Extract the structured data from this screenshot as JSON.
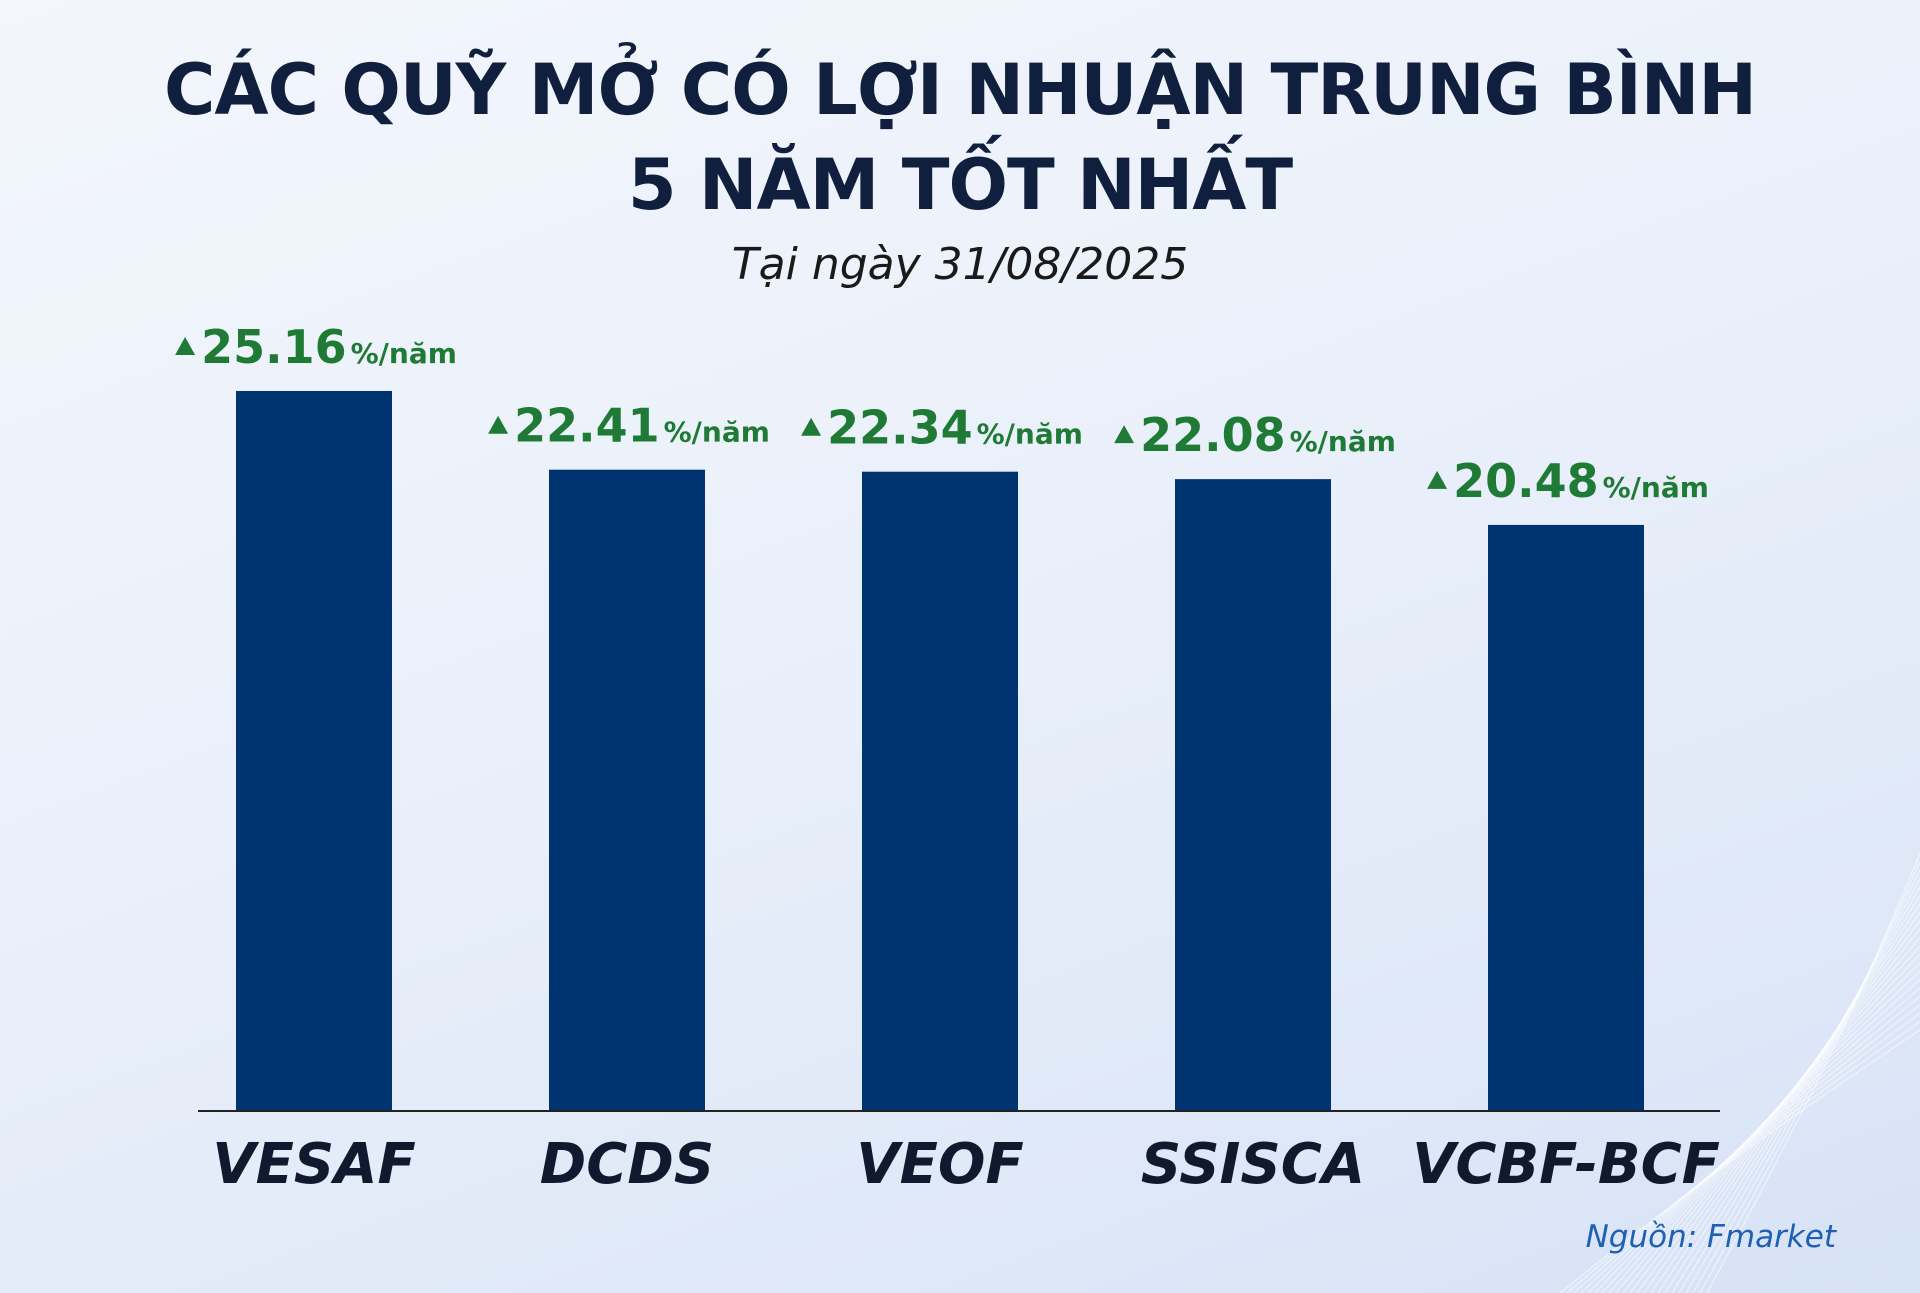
{
  "chart_data": {
    "type": "bar",
    "title": "CÁC QUỸ MỞ CÓ LỢI NHUẬN TRUNG BÌNH",
    "title_line2": "5 NĂM TỐT NHẤT",
    "subtitle": "Tại ngày 31/08/2025",
    "categories": [
      "VESAF",
      "DCDS",
      "VEOF",
      "SSISCA",
      "VCBF-BCF"
    ],
    "values": [
      25.16,
      22.41,
      22.34,
      22.08,
      20.48
    ],
    "value_labels": [
      "25.16",
      "22.41",
      "22.34",
      "22.08",
      "20.48"
    ],
    "value_unit": "%/năm",
    "xlabel": "",
    "ylabel": "",
    "ylim": [
      0,
      25.16
    ],
    "grid": false,
    "legend": "none",
    "bar_color": "#003471",
    "label_color": "#1e7a35",
    "source": "Nguồn: Fmarket"
  }
}
